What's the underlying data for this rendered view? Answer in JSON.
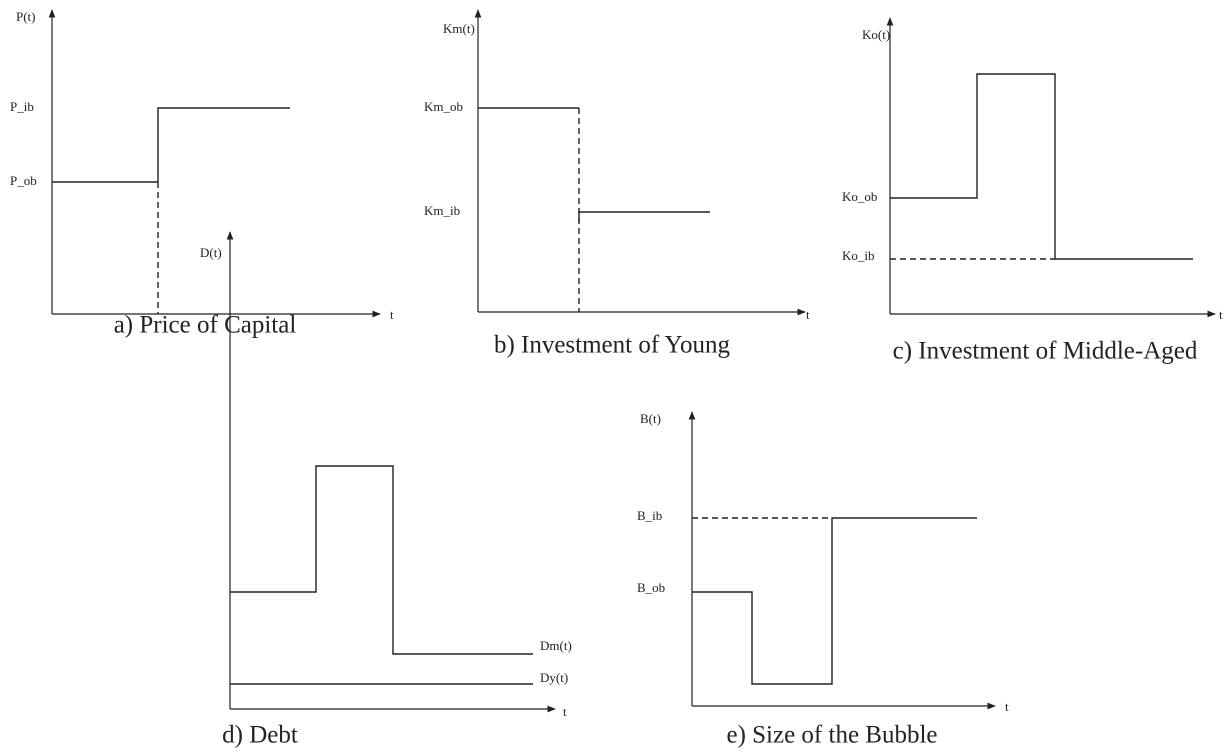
{
  "panels": [
    {
      "y_label": "P(t)",
      "x_label": "t",
      "levels": [
        "P_ib",
        "P_ob"
      ],
      "caption": "a) Price of Capital"
    },
    {
      "y_label": "Km(t)",
      "x_label": "t",
      "levels": [
        "Km_ob",
        "Km_ib"
      ],
      "caption": "b) Investment of Young"
    },
    {
      "y_label": "Ko(t)",
      "x_label": "t",
      "levels": [
        "Ko_ob",
        "Ko_ib"
      ],
      "caption": "c) Investment of Middle-Aged"
    },
    {
      "y_label": "D(t)",
      "x_label": "t",
      "series": [
        "Dm(t)",
        "Dy(t)"
      ],
      "caption": "d) Debt"
    },
    {
      "y_label": "B(t)",
      "x_label": "t",
      "levels": [
        "B_ib",
        "B_ob"
      ],
      "caption": "e) Size of the Bubble"
    }
  ]
}
